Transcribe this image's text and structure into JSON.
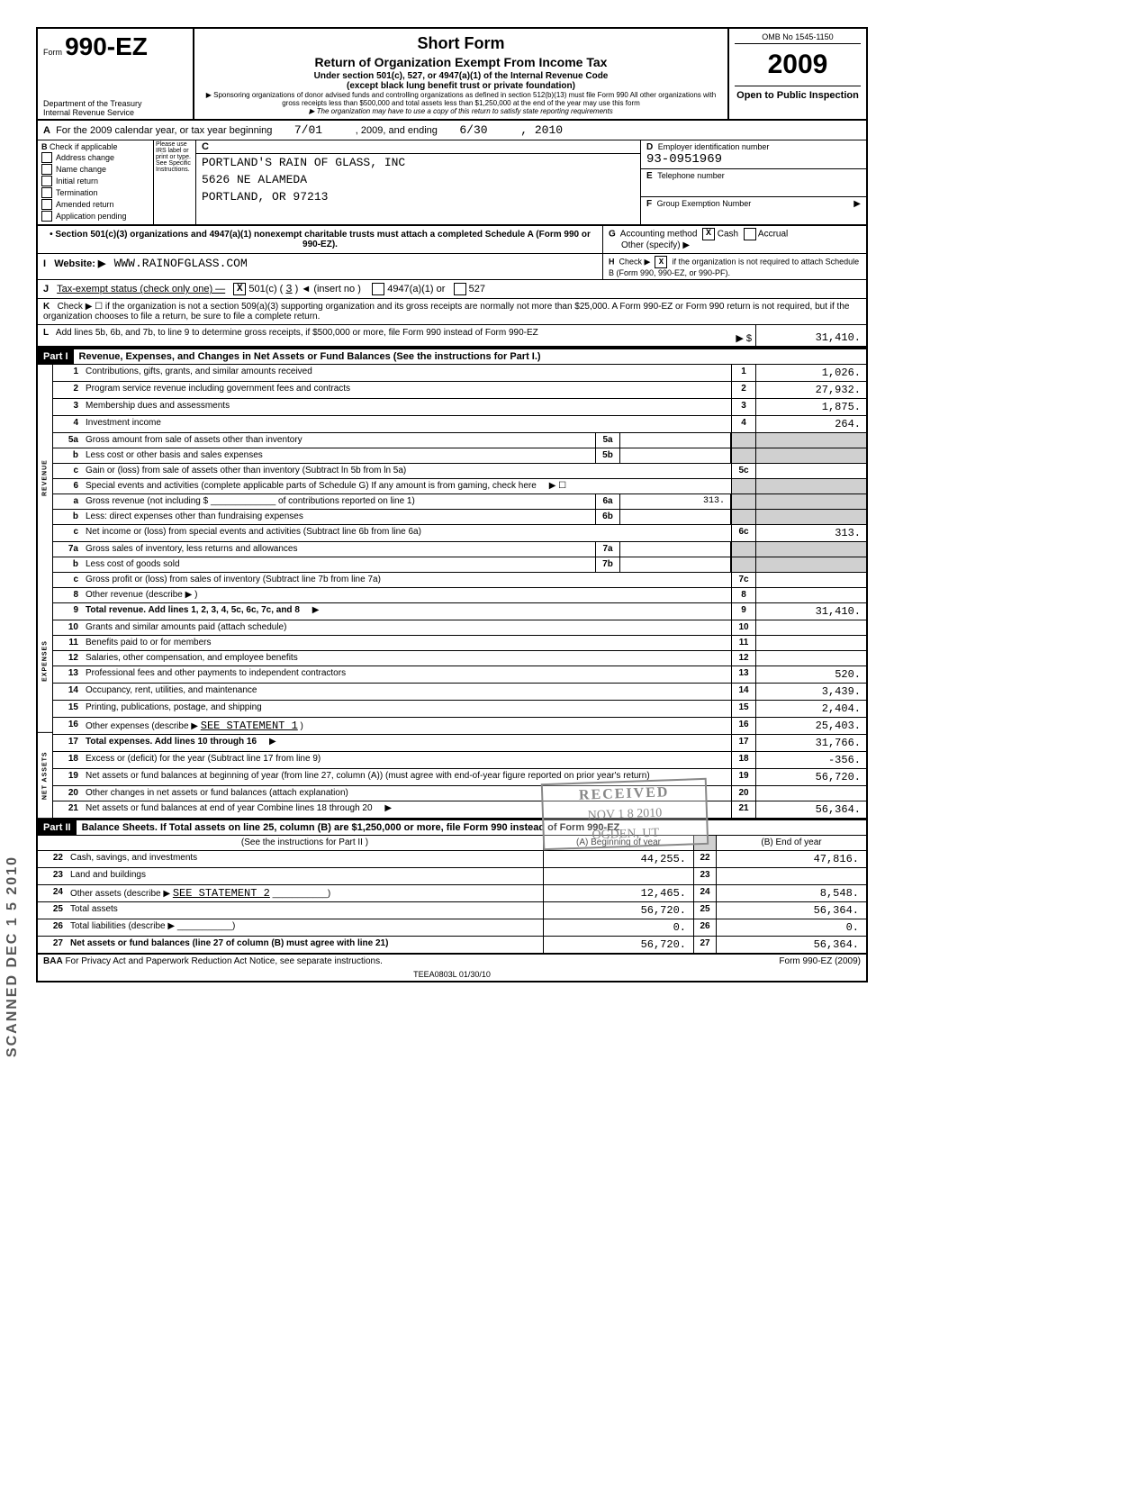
{
  "form": {
    "number": "990-EZ",
    "form_prefix": "Form",
    "dept1": "Department of the Treasury",
    "dept2": "Internal Revenue Service",
    "title1": "Short Form",
    "title2": "Return of Organization Exempt From Income Tax",
    "subtitle1": "Under section 501(c), 527, or 4947(a)(1) of the Internal Revenue Code",
    "subtitle2": "(except black lung benefit trust or private foundation)",
    "note1": "▶ Sponsoring organizations of donor advised funds and controlling organizations as defined in section 512(b)(13) must file Form 990 All other organizations with gross receipts less than $500,000 and total assets less than $1,250,000 at the end of the year may use this form",
    "note2": "▶ The organization may have to use a copy of this return to satisfy state reporting requirements",
    "omb": "OMB No 1545-1150",
    "year": "2009",
    "open": "Open to Public Inspection"
  },
  "section_a": {
    "prefix": "A",
    "text": "For the 2009 calendar year, or tax year beginning",
    "begin": "7/01",
    "mid": ", 2009, and ending",
    "end": "6/30",
    "year_end": ", 2010"
  },
  "section_b": {
    "label": "B",
    "heading": "Check if applicable",
    "items": [
      "Address change",
      "Name change",
      "Initial return",
      "Termination",
      "Amended return",
      "Application pending"
    ],
    "irs_note": "Please use IRS label or print or type. See Specific Instructions."
  },
  "section_c": {
    "label": "C",
    "name": "PORTLAND'S RAIN OF GLASS, INC",
    "addr1": "5626 NE ALAMEDA",
    "addr2": "PORTLAND, OR 97213"
  },
  "section_d": {
    "label": "D",
    "heading": "Employer identification number",
    "value": "93-0951969"
  },
  "section_e": {
    "label": "E",
    "heading": "Telephone number",
    "value": ""
  },
  "section_f": {
    "label": "F",
    "heading": "Group Exemption Number",
    "arrow": "▶"
  },
  "section_g": {
    "bullet": "• Section 501(c)(3) organizations and 4947(a)(1) nonexempt charitable trusts must attach a completed Schedule A (Form 990 or 990-EZ).",
    "g_label": "G",
    "g_text": "Accounting method",
    "cash": "Cash",
    "accrual": "Accrual",
    "other": "Other (specify) ▶"
  },
  "section_h": {
    "label": "H",
    "text1": "Check ▶",
    "text2": "if the organization is not required to attach Schedule B (Form 990, 990-EZ, or 990-PF)."
  },
  "section_i": {
    "label": "I",
    "heading": "Website: ▶",
    "value": "WWW.RAINOFGLASS.COM"
  },
  "section_j": {
    "label": "J",
    "heading": "Tax-exempt status (check only one) —",
    "opt1": "501(c) (",
    "opt1_val": "3",
    "opt1_suf": ") ◄ (insert no )",
    "opt2": "4947(a)(1) or",
    "opt3": "527"
  },
  "section_k": {
    "label": "K",
    "text": "Check ▶ ☐ if the organization is not a section 509(a)(3) supporting organization and its gross receipts are normally not more than $25,000. A Form 990-EZ or Form 990 return is not required, but if the organization chooses to file a return, be sure to file a complete return."
  },
  "section_l": {
    "label": "L",
    "text": "Add lines 5b, 6b, and 7b, to line 9 to determine gross receipts, if $500,000 or more, file Form 990 instead of Form 990-EZ",
    "arrow": "▶ $",
    "value": "31,410."
  },
  "part1": {
    "label": "Part I",
    "heading": "Revenue, Expenses, and Changes in Net Assets or Fund Balances (See the instructions for Part I.)"
  },
  "lines": {
    "1": {
      "n": "1",
      "d": "Contributions, gifts, grants, and similar amounts received",
      "v": "1,026."
    },
    "2": {
      "n": "2",
      "d": "Program service revenue including government fees and contracts",
      "v": "27,932."
    },
    "3": {
      "n": "3",
      "d": "Membership dues and assessments",
      "v": "1,875."
    },
    "4": {
      "n": "4",
      "d": "Investment income",
      "v": "264."
    },
    "5a": {
      "n": "5a",
      "d": "Gross amount from sale of assets other than inventory",
      "mn": "5a",
      "mv": ""
    },
    "5b": {
      "n": "b",
      "d": "Less cost or other basis and sales expenses",
      "mn": "5b",
      "mv": ""
    },
    "5c": {
      "n": "c",
      "d": "Gain or (loss) from sale of assets other than inventory (Subtract ln 5b from ln 5a)",
      "rn": "5c",
      "v": ""
    },
    "6": {
      "n": "6",
      "d": "Special events and activities (complete applicable parts of Schedule G) If any amount is from gaming, check here",
      "arrow": "▶ ☐"
    },
    "6a": {
      "n": "a",
      "d": "Gross revenue (not including $ _____________ of contributions reported on line 1)",
      "mn": "6a",
      "mv": "313."
    },
    "6b": {
      "n": "b",
      "d": "Less: direct expenses other than fundraising expenses",
      "mn": "6b",
      "mv": ""
    },
    "6c": {
      "n": "c",
      "d": "Net income or (loss) from special events and activities (Subtract line 6b from line 6a)",
      "rn": "6c",
      "v": "313."
    },
    "7a": {
      "n": "7a",
      "d": "Gross sales of inventory, less returns and allowances",
      "mn": "7a",
      "mv": ""
    },
    "7b": {
      "n": "b",
      "d": "Less cost of goods sold",
      "mn": "7b",
      "mv": ""
    },
    "7c": {
      "n": "c",
      "d": "Gross profit or (loss) from sales of inventory (Subtract line 7b from line 7a)",
      "rn": "7c",
      "v": ""
    },
    "8": {
      "n": "8",
      "d": "Other revenue (describe ▶",
      "rn": "8",
      "v": "",
      "suffix": ")"
    },
    "9": {
      "n": "9",
      "d": "Total revenue. Add lines 1, 2, 3, 4, 5c, 6c, 7c, and 8",
      "arrow": "▶",
      "rn": "9",
      "v": "31,410.",
      "bold": true
    },
    "10": {
      "n": "10",
      "d": "Grants and similar amounts paid (attach schedule)",
      "rn": "10",
      "v": ""
    },
    "11": {
      "n": "11",
      "d": "Benefits paid to or for members",
      "rn": "11",
      "v": ""
    },
    "12": {
      "n": "12",
      "d": "Salaries, other compensation, and employee benefits",
      "rn": "12",
      "v": ""
    },
    "13": {
      "n": "13",
      "d": "Professional fees and other payments to independent contractors",
      "rn": "13",
      "v": "520."
    },
    "14": {
      "n": "14",
      "d": "Occupancy, rent, utilities, and maintenance",
      "rn": "14",
      "v": "3,439."
    },
    "15": {
      "n": "15",
      "d": "Printing, publications, postage, and shipping",
      "rn": "15",
      "v": "2,404."
    },
    "16": {
      "n": "16",
      "d": "Other expenses (describe ▶",
      "stmt": "SEE STATEMENT 1",
      "rn": "16",
      "v": "25,403.",
      "suffix": ")"
    },
    "17": {
      "n": "17",
      "d": "Total expenses. Add lines 10 through 16",
      "arrow": "▶",
      "rn": "17",
      "v": "31,766.",
      "bold": true
    },
    "18": {
      "n": "18",
      "d": "Excess or (deficit) for the year (Subtract line 17 from line 9)",
      "rn": "18",
      "v": "-356."
    },
    "19": {
      "n": "19",
      "d": "Net assets or fund balances at beginning of year (from line 27, column (A)) (must agree with end-of-year figure reported on prior year's return)",
      "rn": "19",
      "v": "56,720."
    },
    "20": {
      "n": "20",
      "d": "Other changes in net assets or fund balances (attach explanation)",
      "rn": "20",
      "v": ""
    },
    "21": {
      "n": "21",
      "d": "Net assets or fund balances at end of year Combine lines 18 through 20",
      "arrow": "▶",
      "rn": "21",
      "v": "56,364."
    }
  },
  "part2": {
    "label": "Part II",
    "heading": "Balance Sheets. If Total assets on line 25, column (B) are $1,250,000 or more, file Form 990 instead of Form 990-EZ",
    "subheading": "(See the instructions for Part II )",
    "col_a": "(A) Beginning of year",
    "col_b": "(B) End of year"
  },
  "balance": {
    "22": {
      "n": "22",
      "d": "Cash, savings, and investments",
      "a": "44,255.",
      "b": "47,816."
    },
    "23": {
      "n": "23",
      "d": "Land and buildings",
      "a": "",
      "b": ""
    },
    "24": {
      "n": "24",
      "d": "Other assets (describe ▶",
      "stmt": "SEE STATEMENT 2",
      "suffix": ")",
      "a": "12,465.",
      "b": "8,548."
    },
    "25": {
      "n": "25",
      "d": "Total assets",
      "a": "56,720.",
      "b": "56,364."
    },
    "26": {
      "n": "26",
      "d": "Total liabilities (describe ▶",
      "suffix": ")",
      "a": "0.",
      "b": "0."
    },
    "27": {
      "n": "27",
      "d": "Net assets or fund balances (line 27 of column (B) must agree with line 21)",
      "a": "56,720.",
      "b": "56,364.",
      "bold": true
    }
  },
  "footer": {
    "baa": "BAA For Privacy Act and Paperwork Reduction Act Notice, see separate instructions.",
    "code": "TEEA0803L  01/30/10",
    "form": "Form 990-EZ (2009)"
  },
  "stamp": {
    "r1": "RECEIVED",
    "r2": "NOV 1 8 2010",
    "r3": "OGDEN, UT"
  },
  "side": "SCANNED DEC 1 5 2010",
  "vert_labels": {
    "revenue": "REVENUE",
    "expenses": "EXPENSES",
    "netassets": "NET ASSETS"
  }
}
